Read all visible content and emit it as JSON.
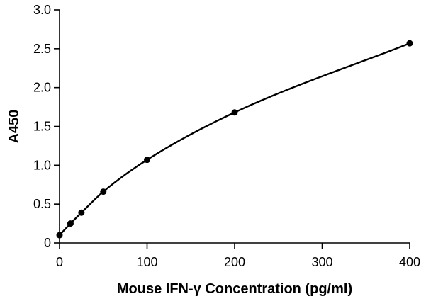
{
  "chart_data": {
    "type": "scatter",
    "title": "",
    "xlabel": "Mouse IFN-γ Concentration (pg/ml)",
    "ylabel": "A450",
    "xlim": [
      0,
      400
    ],
    "ylim": [
      0,
      3.0
    ],
    "x_ticks": [
      "0",
      "100",
      "200",
      "300",
      "400"
    ],
    "y_ticks": [
      "0",
      "0.5",
      "1.0",
      "1.5",
      "2.0",
      "2.5",
      "3.0"
    ],
    "grid": false,
    "legend": "none",
    "series": [
      {
        "points": [
          {
            "x": 0,
            "y": 0.1
          },
          {
            "x": 12.5,
            "y": 0.25
          },
          {
            "x": 25,
            "y": 0.39
          },
          {
            "x": 50,
            "y": 0.66
          },
          {
            "x": 100,
            "y": 1.07
          },
          {
            "x": 200,
            "y": 1.68
          },
          {
            "x": 400,
            "y": 2.57
          }
        ],
        "fit_curve": true,
        "color": "#000000"
      }
    ]
  }
}
